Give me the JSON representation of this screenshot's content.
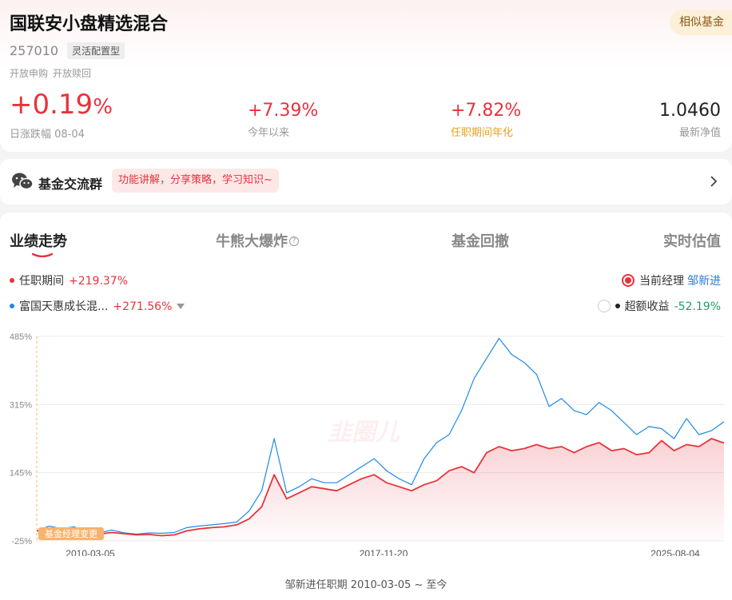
{
  "fund": {
    "name": "国联安小盘精选混合",
    "code": "257010",
    "type": "灵活配置型",
    "status": [
      "开放申购",
      "开放赎回"
    ],
    "similar_label": "相似基金"
  },
  "metrics": {
    "daily": {
      "value": "+0.19",
      "pct": "%",
      "label": "日涨跌幅 08-04"
    },
    "ytd": {
      "value": "+7.39%",
      "label": "今年以来"
    },
    "tenure": {
      "value": "+7.82%",
      "label": "任职期间年化"
    },
    "nav": {
      "value": "1.0460",
      "label": "最新净值"
    }
  },
  "group": {
    "title": "基金交流群",
    "tag": "功能讲解，分享策略，学习知识~"
  },
  "tabs": [
    {
      "label": "业绩走势",
      "active": true
    },
    {
      "label": "牛熊大爆炸",
      "active": false
    },
    {
      "label": "基金回撤",
      "active": false
    },
    {
      "label": "实时估值",
      "active": false
    }
  ],
  "legend": {
    "tenure_label": "任职期间",
    "tenure_value": "+219.37%",
    "compare_label": "富国天惠成长混...",
    "compare_value": "+271.56%",
    "manager_label": "当前经理",
    "manager_name": "邹新进",
    "excess_label": "超额收益",
    "excess_value": "-52.19%"
  },
  "colors": {
    "red": "#e8323c",
    "blue": "#1e8ae6",
    "green": "#1aa36a",
    "gold": "#e8a21e"
  },
  "chart_data": {
    "type": "line",
    "yticks": [
      "485%",
      "315%",
      "145%",
      "-25%"
    ],
    "ylim": [
      -25,
      485
    ],
    "xticks": [
      "2010-03-05",
      "2017-11-20",
      "2025-08-04"
    ],
    "annotation": "基金经理变更",
    "watermark": "韭圈儿",
    "series": [
      {
        "name": "任职期间",
        "color": "#e8323c",
        "values": [
          0,
          4,
          -2,
          3,
          -5,
          -8,
          -4,
          -7,
          -10,
          -9,
          -12,
          -10,
          0,
          5,
          8,
          10,
          15,
          30,
          60,
          140,
          80,
          95,
          110,
          105,
          100,
          115,
          130,
          140,
          120,
          110,
          100,
          115,
          125,
          150,
          160,
          145,
          195,
          210,
          200,
          205,
          215,
          205,
          210,
          195,
          210,
          220,
          200,
          205,
          190,
          195,
          225,
          200,
          215,
          210,
          230,
          219
        ]
      },
      {
        "name": "富国天惠成长混...",
        "color": "#1e8ae6",
        "values": [
          0,
          12,
          5,
          10,
          -2,
          -5,
          2,
          -5,
          -8,
          -5,
          -6,
          -4,
          8,
          12,
          15,
          18,
          22,
          50,
          100,
          230,
          95,
          110,
          130,
          120,
          120,
          140,
          160,
          180,
          150,
          130,
          115,
          180,
          220,
          240,
          300,
          380,
          430,
          480,
          440,
          420,
          390,
          310,
          330,
          300,
          290,
          320,
          300,
          270,
          240,
          260,
          255,
          230,
          280,
          240,
          250,
          272
        ]
      }
    ]
  },
  "tenure_text": "邹新进任职期 2010-03-05 ~ 至今"
}
